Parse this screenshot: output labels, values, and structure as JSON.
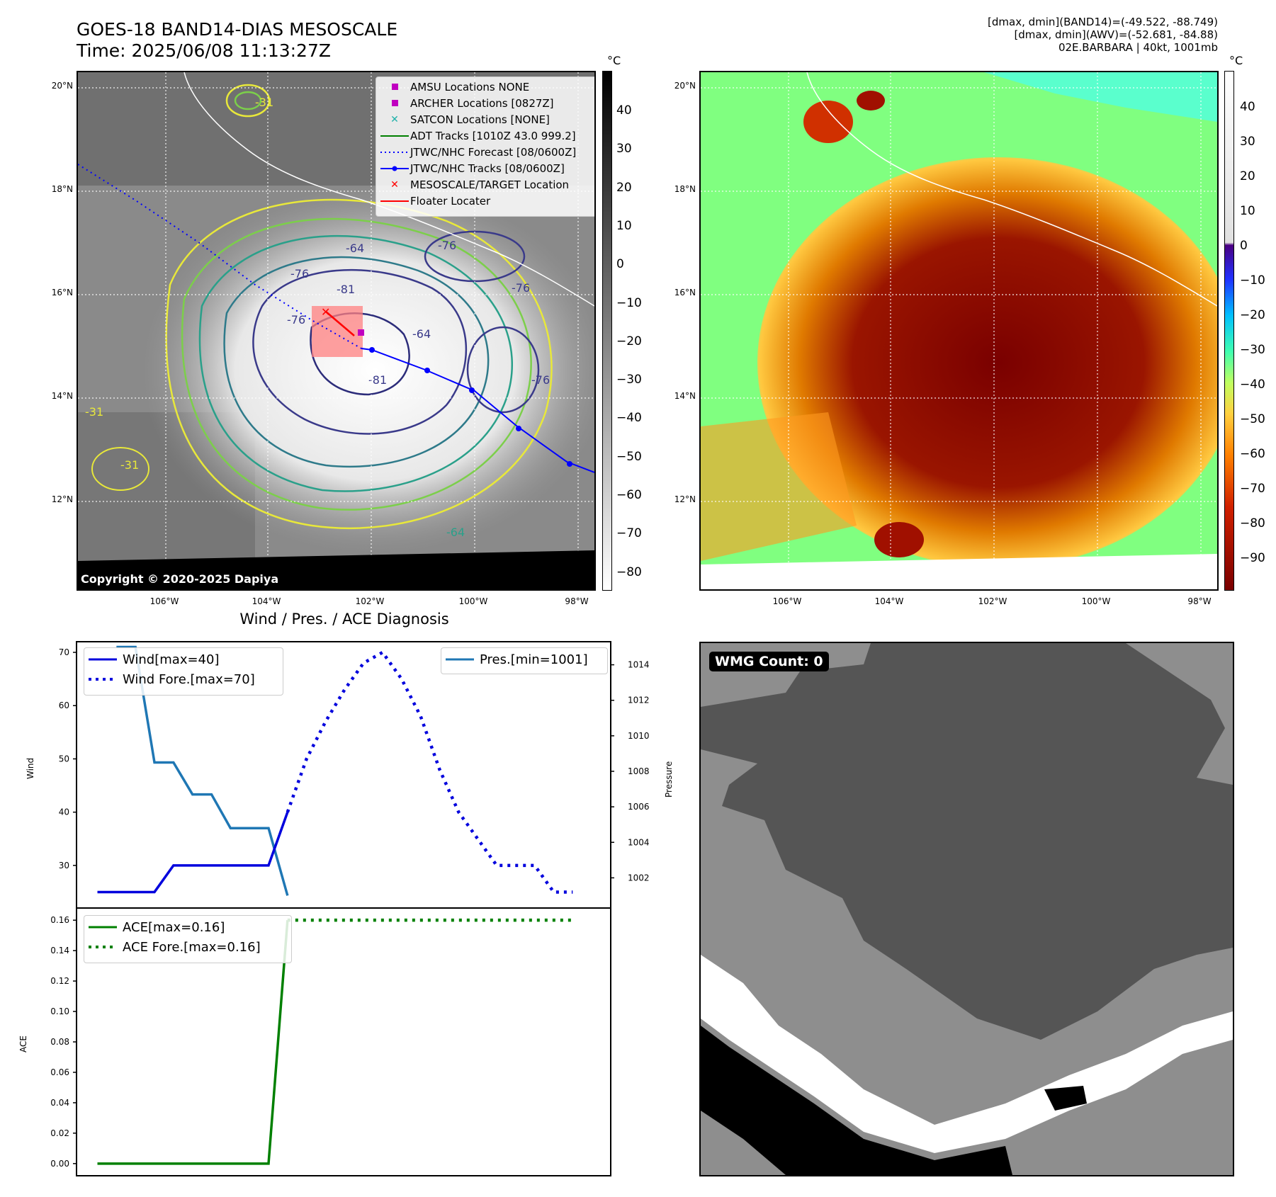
{
  "header": {
    "title_line1": "GOES-18 BAND14-DIAS MESOSCALE",
    "title_line2": "Time: 2025/06/08 11:13:27Z",
    "stats_line1": "[dmax, dmin](BAND14)=(-49.522, -88.749)",
    "stats_line2": "[dmax, dmin](AWV)=(-52.681, -84.88)",
    "stats_line3": "02E.BARBARA | 40kt, 1001mb"
  },
  "maps": {
    "lat_ticks": [
      "20°N",
      "18°N",
      "16°N",
      "14°N",
      "12°N"
    ],
    "lon_ticks": [
      "106°W",
      "104°W",
      "102°W",
      "100°W",
      "98°W"
    ],
    "colorbar_unit": "°C",
    "gray_colorbar_ticks": [
      "40",
      "30",
      "20",
      "10",
      "0",
      "−10",
      "−20",
      "−30",
      "−40",
      "−50",
      "−60",
      "−70",
      "−80"
    ],
    "color_colorbar_ticks": [
      "40",
      "30",
      "20",
      "10",
      "0",
      "−10",
      "−20",
      "−30",
      "−40",
      "−50",
      "−60",
      "−70",
      "−80",
      "−90"
    ],
    "contour_labels": [
      "-76",
      "-64",
      "-76",
      "-76",
      "-81",
      "-76",
      "-81",
      "-64",
      "-76",
      "-31",
      "-31",
      "-31",
      "-64"
    ],
    "copyright": "Copyright © 2020-2025 Dapiya",
    "legend": [
      {
        "label": "AMSU Locations NONE",
        "symbol": "square",
        "color": "#c000c0"
      },
      {
        "label": "ARCHER Locations [0827Z]",
        "symbol": "square",
        "color": "#c000c0"
      },
      {
        "label": "SATCON Locations [NONE]",
        "symbol": "x",
        "color": "#20b2aa"
      },
      {
        "label": "ADT Tracks [1010Z 43.0 999.2]",
        "symbol": "line",
        "color": "#008000"
      },
      {
        "label": "JTWC/NHC Forecast [08/0600Z]",
        "symbol": "dotted",
        "color": "#0000ff"
      },
      {
        "label": "JTWC/NHC Tracks [08/0600Z]",
        "symbol": "linedot",
        "color": "#0000ff"
      },
      {
        "label": "MESOSCALE/TARGET Location",
        "symbol": "x",
        "color": "#ff0000"
      },
      {
        "label": "Floater Locater",
        "symbol": "line",
        "color": "#ff0000"
      }
    ]
  },
  "diagnosis": {
    "title": "Wind / Pres. / ACE Diagnosis",
    "wind_axis_label": "Wind",
    "pressure_axis_label": "Pressure",
    "ace_axis_label": "ACE",
    "wind_ticks": [
      "70",
      "60",
      "50",
      "40",
      "30"
    ],
    "pressure_ticks": [
      "1014",
      "1012",
      "1010",
      "1008",
      "1006",
      "1004",
      "1002"
    ],
    "ace_ticks": [
      "0.16",
      "0.14",
      "0.12",
      "0.10",
      "0.08",
      "0.06",
      "0.04",
      "0.02",
      "0.00"
    ],
    "legend_wind": "Wind[max=40]",
    "legend_wind_fore": "Wind Fore.[max=70]",
    "legend_pres": "Pres.[min=1001]",
    "legend_ace": "ACE[max=0.16]",
    "legend_ace_fore": "ACE Fore.[max=0.16]"
  },
  "wmg": {
    "label": "WMG Count: 0"
  },
  "chart_data": [
    {
      "type": "line",
      "title": "Wind / Pres. / ACE Diagnosis",
      "ylabel": "Wind",
      "ylim": [
        22,
        72
      ],
      "x": [
        0,
        1,
        2,
        3,
        4,
        5,
        6,
        7,
        8,
        9,
        10,
        11,
        12,
        13,
        14,
        15,
        16,
        17,
        18,
        19,
        20,
        21,
        22,
        23,
        24,
        25
      ],
      "series": [
        {
          "name": "Wind[max=40]",
          "color": "#0000dd",
          "style": "solid",
          "x": [
            0,
            3,
            4,
            5,
            6,
            7,
            8,
            9,
            10
          ],
          "values": [
            25,
            25,
            30,
            30,
            30,
            30,
            30,
            30,
            40
          ]
        },
        {
          "name": "Wind Fore.[max=70]",
          "color": "#0000dd",
          "style": "dotted",
          "x": [
            10,
            11,
            12,
            13,
            14,
            15,
            16,
            17,
            18,
            19,
            20,
            21,
            22,
            23,
            24,
            25
          ],
          "values": [
            40,
            50,
            57,
            63,
            68,
            70,
            65,
            58,
            48,
            40,
            35,
            30,
            30,
            30,
            25,
            25
          ]
        }
      ]
    },
    {
      "type": "line",
      "ylabel": "Pressure",
      "ylim": [
        1000.3,
        1015.3
      ],
      "series": [
        {
          "name": "Pres.[min=1001]",
          "color": "#1f77b4",
          "style": "solid",
          "x": [
            1,
            2,
            3,
            4,
            5,
            6,
            7,
            8,
            9,
            10
          ],
          "values": [
            1015,
            1015,
            1008.5,
            1008.5,
            1006.7,
            1006.7,
            1004.8,
            1004.8,
            1004.8,
            1001
          ]
        }
      ]
    },
    {
      "type": "line",
      "ylabel": "ACE",
      "ylim": [
        -0.008,
        0.168
      ],
      "series": [
        {
          "name": "ACE[max=0.16]",
          "color": "#008000",
          "style": "solid",
          "x": [
            0,
            9,
            10
          ],
          "values": [
            0.0,
            0.0,
            0.16
          ]
        },
        {
          "name": "ACE Fore.[max=0.16]",
          "color": "#008000",
          "style": "dotted",
          "x": [
            10,
            25
          ],
          "values": [
            0.16,
            0.16
          ]
        }
      ]
    }
  ]
}
